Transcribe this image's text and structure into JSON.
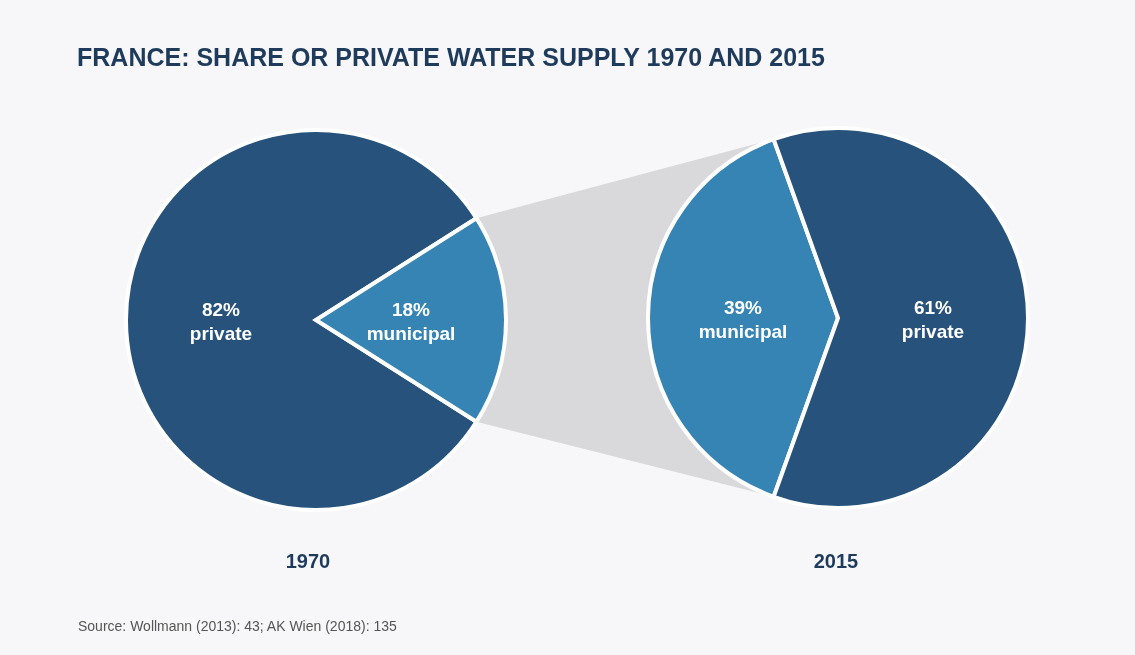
{
  "chart_data": [
    {
      "type": "pie",
      "title": "FRANCE: SHARE OR PRIVATE WATER SUPPLY 1970 AND 2015",
      "xlabel": "1970",
      "categories": [
        "private",
        "municipal"
      ],
      "values": [
        82,
        18
      ],
      "value_labels": [
        "82%",
        "18%"
      ],
      "colors": [
        "#26527c",
        "#3584b3"
      ],
      "annotations": [
        "Source: Wollmann (2013): 43; AK Wien (2018): 135"
      ]
    },
    {
      "type": "pie",
      "xlabel": "2015",
      "categories": [
        "municipal",
        "private"
      ],
      "values": [
        39,
        61
      ],
      "value_labels": [
        "39%",
        "61%"
      ],
      "colors": [
        "#3584b3",
        "#26527c"
      ]
    }
  ]
}
